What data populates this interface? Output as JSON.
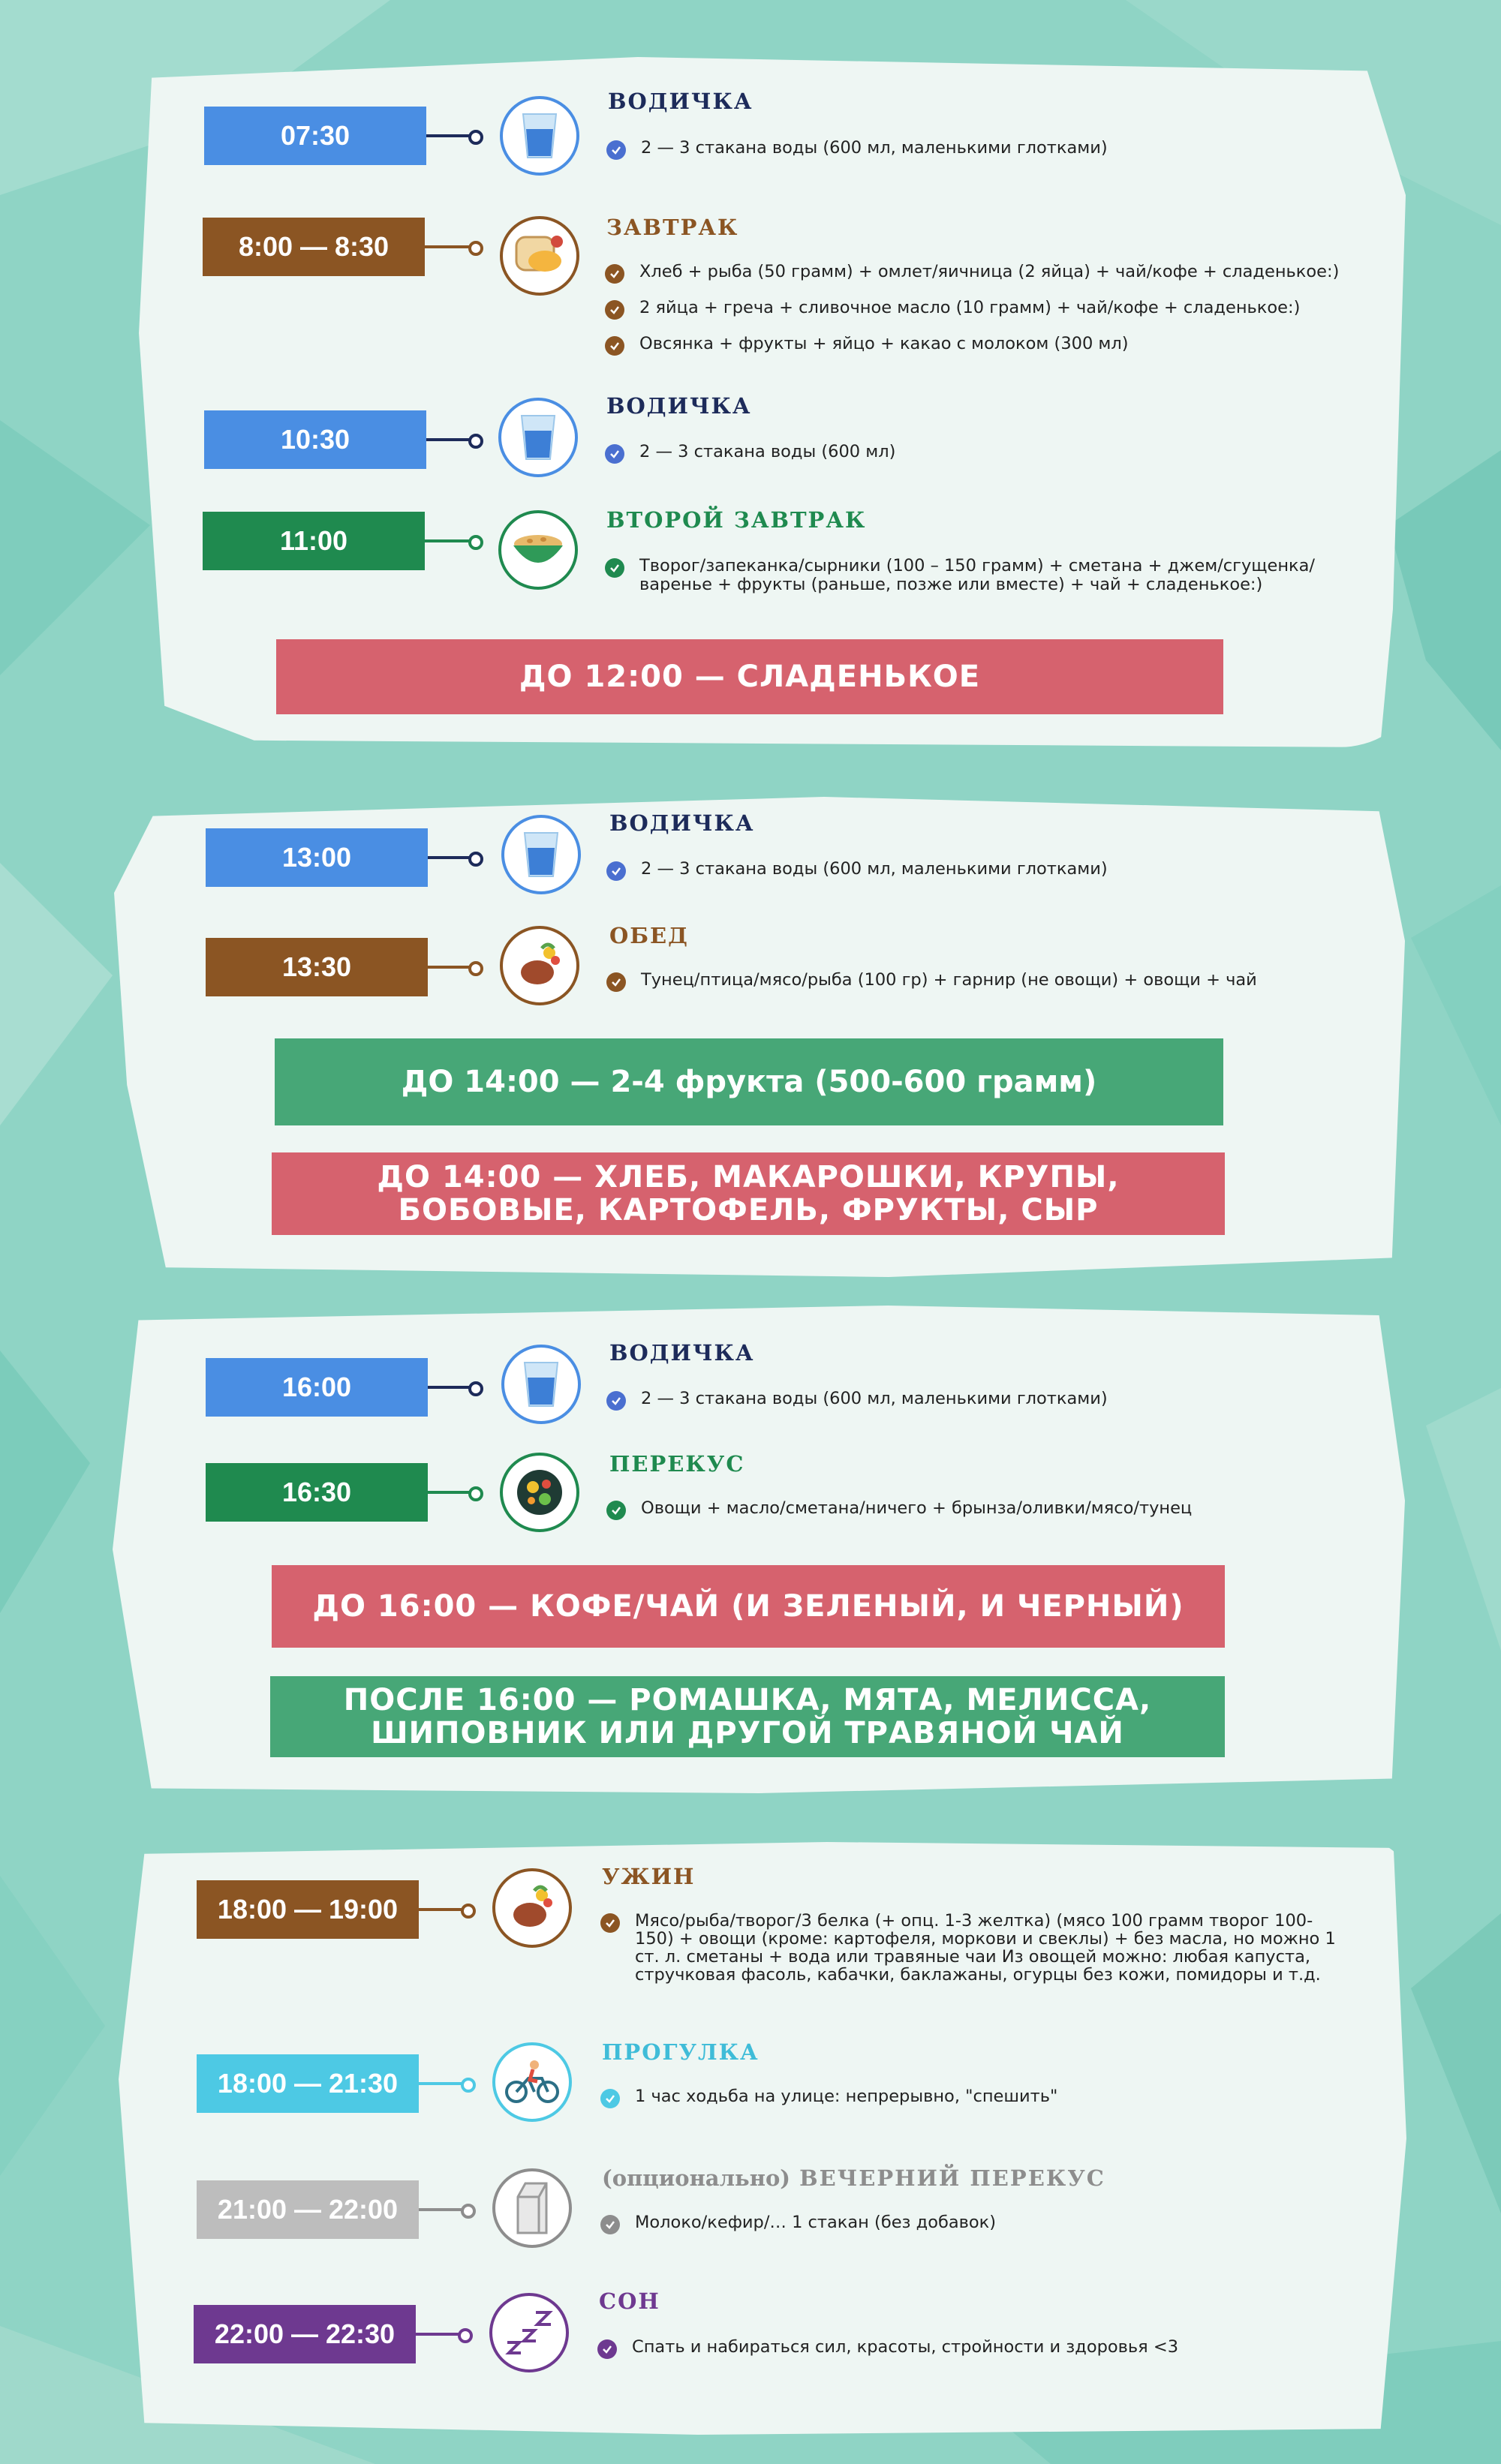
{
  "colors": {
    "blue": "#4a8ee3",
    "brown": "#8b5523",
    "green": "#1f8a4f",
    "cyan": "#4dc9e4",
    "gray": "#bdbdbd",
    "purple": "#6e3990",
    "banner_red": "#d6626e",
    "banner_green": "#47a777",
    "title_navy": "#1d2b5a",
    "title_brown": "#8b5523",
    "title_green": "#1f8a4f",
    "title_cyan": "#3fbcd8",
    "title_gray": "#8d8d8d",
    "title_purple": "#6e3990"
  },
  "sections": [
    {
      "entries": [
        {
          "time": "07:30",
          "icon": "water-glass-icon",
          "title": "ВОДИЧКА",
          "items": [
            "2 — 3 стакана воды (600 мл, маленькими глотками)"
          ]
        },
        {
          "time": "8:00 — 8:30",
          "icon": "breakfast-sandwich-icon",
          "title": "ЗАВТРАК",
          "items": [
            "Хлеб + рыба (50 грамм) + омлет/яичница (2 яйца) + чай/кофе + сладенькое:)",
            "2 яйца + греча + сливочное масло (10 грамм) + чай/кофе + сладенькое:)",
            "Овсянка + фрукты + яйцо + какао с молоком (300 мл)"
          ]
        },
        {
          "time": "10:30",
          "icon": "water-glass-icon",
          "title": "ВОДИЧКА",
          "items": [
            "2 — 3 стакана воды (600 мл)"
          ]
        },
        {
          "time": "11:00",
          "icon": "porridge-bowl-icon",
          "title": "ВТОРОЙ ЗАВТРАК",
          "items": [
            "Творог/запеканка/сырники (100 – 150 грамм) +  сметана + джем/сгущенка/ варенье + фрукты (раньше, позже или вместе) + чай + сладенькое:)"
          ]
        }
      ],
      "banners": [
        "ДО 12:00 — СЛАДЕНЬКОЕ"
      ]
    },
    {
      "entries": [
        {
          "time": "13:00",
          "icon": "water-glass-icon",
          "title": "ВОДИЧКА",
          "items": [
            "2 — 3 стакана воды (600 мл, маленькими глотками)"
          ]
        },
        {
          "time": "13:30",
          "icon": "meat-plate-icon",
          "title": "ОБЕД",
          "items": [
            "Тунец/птица/мясо/рыба (100 гр) + гарнир (не овощи) + овощи  + чай"
          ]
        }
      ],
      "banners": [
        "ДО 14:00 — 2-4 фрукта (500-600 грамм)",
        "ДО 14:00 — ХЛЕБ, МАКАРОШКИ, КРУПЫ, БОБОВЫЕ, КАРТОФЕЛЬ, ФРУКТЫ, СЫР"
      ]
    },
    {
      "entries": [
        {
          "time": "16:00",
          "icon": "water-glass-icon",
          "title": "ВОДИЧКА",
          "items": [
            "2 — 3 стакана воды (600 мл, маленькими глотками)"
          ]
        },
        {
          "time": "16:30",
          "icon": "salad-bowl-icon",
          "title": "ПЕРЕКУС",
          "items": [
            "Овощи + масло/сметана/ничего + брынза/оливки/мясо/тунец"
          ]
        }
      ],
      "banners": [
        "ДО 16:00 — КОФЕ/ЧАЙ (И ЗЕЛЕНЫЙ, И ЧЕРНЫЙ)",
        "ПОСЛЕ 16:00 — РОМАШКА, МЯТА, МЕЛИССА, ШИПОВНИК ИЛИ ДРУГОЙ ТРАВЯНОЙ ЧАЙ"
      ]
    },
    {
      "entries": [
        {
          "time": "18:00 — 19:00",
          "icon": "meat-plate-icon",
          "title": "УЖИН",
          "items": [
            "Мясо/рыба/творог/3 белка (+ опц. 1-3 желтка) (мясо 100 грамм творог 100-150) + овощи (кроме: картофеля, моркови и свеклы) + без масла, но можно 1 ст. л. сметаны + вода или травяные чаи Из овощей можно: любая капуста, стручковая фасоль, кабачки, баклажаны, огурцы без кожи, помидоры и т.д."
          ]
        },
        {
          "time": "18:00 — 21:30",
          "icon": "bicycle-icon",
          "title": "ПРОГУЛКА",
          "items": [
            "1 час ходьба на улице: непрерывно, \"спешить\""
          ]
        },
        {
          "time": "21:00 — 22:00",
          "icon": "milk-carton-icon",
          "title_prefix": "(опционально)",
          "title": "ВЕЧЕРНИЙ ПЕРЕКУС",
          "items": [
            "Молоко/кефир/… 1 стакан (без добавок)"
          ]
        },
        {
          "time": "22:00 — 22:30",
          "icon": "sleep-zzz-icon",
          "title": "СОН",
          "items": [
            "Спать и набираться сил, красоты, стройности и здоровья <3"
          ]
        }
      ],
      "banners": []
    }
  ]
}
